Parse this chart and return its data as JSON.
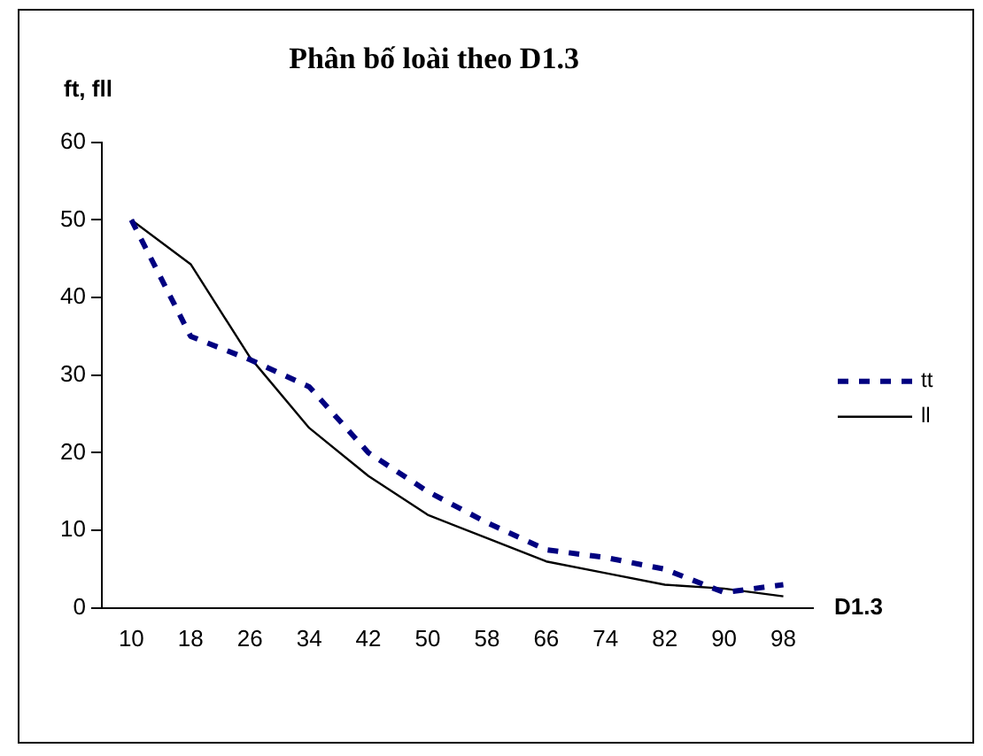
{
  "chart_data": {
    "type": "line",
    "title": "Phân bố loài theo D1.3",
    "xlabel": "D1.3",
    "ylabel": "ft, fll",
    "categories": [
      "10",
      "18",
      "26",
      "34",
      "42",
      "50",
      "58",
      "66",
      "74",
      "82",
      "90",
      "98"
    ],
    "series": [
      {
        "name": "tt",
        "color": "#000080",
        "line_style": "dashed",
        "values": [
          50,
          35,
          32,
          28.5,
          20,
          15,
          11,
          7.5,
          6.5,
          5,
          2,
          3
        ]
      },
      {
        "name": "ll",
        "color": "#000000",
        "line_style": "solid",
        "values": [
          50,
          44.3,
          32.3,
          23.2,
          17,
          12,
          9,
          6,
          4.5,
          3,
          2.5,
          1.5
        ]
      }
    ],
    "ylim": [
      0,
      60
    ],
    "yticks": [
      0,
      10,
      20,
      30,
      40,
      50,
      60
    ],
    "grid": false,
    "legend": "right",
    "marker": "none"
  }
}
